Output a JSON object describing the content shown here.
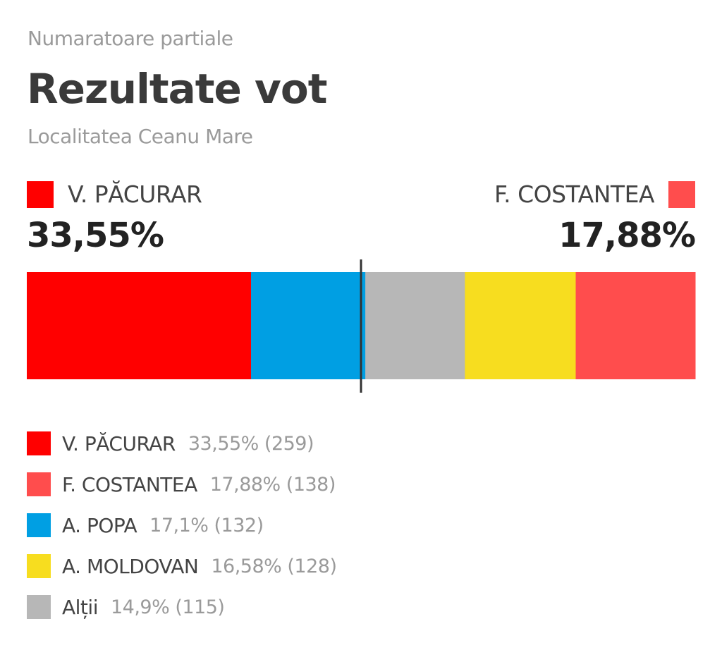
{
  "header": {
    "overline": "Numaratoare partiale",
    "title": "Rezultate vot",
    "subtitle": "Localitatea Ceanu Mare"
  },
  "leaders": {
    "left": {
      "name": "V. PĂCURAR",
      "percent": "33,55%",
      "color": "#ff0000"
    },
    "right": {
      "name": "F. COSTANTEA",
      "percent": "17,88%",
      "color": "#ff4d4d"
    }
  },
  "chart_data": {
    "type": "bar",
    "orientation": "horizontal-stacked",
    "unit": "percent",
    "midline_at": 50,
    "segments": [
      {
        "name": "V. PĂCURAR",
        "value": 33.55,
        "color": "#ff0000"
      },
      {
        "name": "A. POPA",
        "value": 17.1,
        "color": "#009fe3"
      },
      {
        "name": "Alții",
        "value": 14.9,
        "color": "#b7b7b7"
      },
      {
        "name": "A. MOLDOVAN",
        "value": 16.58,
        "color": "#f7dd1f"
      },
      {
        "name": "F. COSTANTEA",
        "value": 17.88,
        "color": "#ff4d4d"
      }
    ]
  },
  "legend": [
    {
      "name": "V. PĂCURAR",
      "value": "33,55% (259)",
      "color": "#ff0000"
    },
    {
      "name": "F. COSTANTEA",
      "value": "17,88% (138)",
      "color": "#ff4d4d"
    },
    {
      "name": "A. POPA",
      "value": "17,1% (132)",
      "color": "#009fe3"
    },
    {
      "name": "A. MOLDOVAN",
      "value": "16,58% (128)",
      "color": "#f7dd1f"
    },
    {
      "name": "Alții",
      "value": "14,9% (115)",
      "color": "#b7b7b7"
    }
  ]
}
